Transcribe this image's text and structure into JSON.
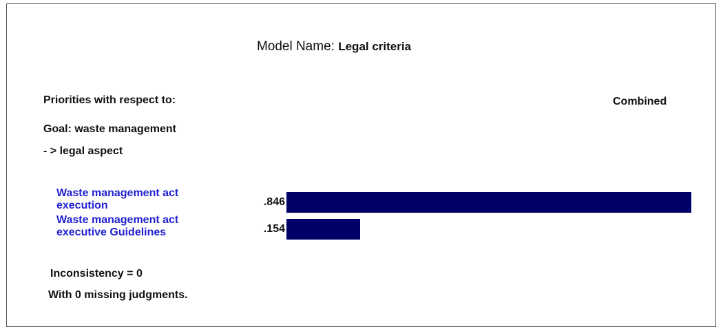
{
  "header": {
    "model_name_label": "Model Name:",
    "model_name": "Legal criteria"
  },
  "priorities_label": "Priorities with respect to:",
  "combined_label": "Combined",
  "goal": "Goal: waste management",
  "path": "- > legal aspect",
  "chart_data": {
    "type": "bar",
    "orientation": "horizontal",
    "categories": [
      "Waste management act\nexecution",
      "Waste management act\nexecutive Guidelines"
    ],
    "values": [
      0.846,
      0.154
    ],
    "value_labels": [
      ".846",
      ".154"
    ],
    "color": "#000066",
    "label_color": "#2020d0"
  },
  "footer": {
    "inconsistency": "Inconsistency = 0",
    "missing": "With 0 missing judgments."
  }
}
